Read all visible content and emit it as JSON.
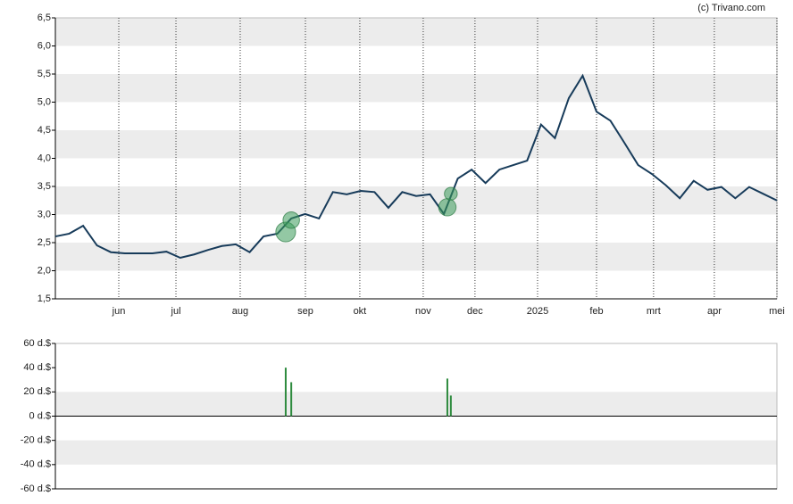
{
  "chart_data": [
    {
      "type": "line",
      "credit": "(c) Trivano.com",
      "values": [
        2.61,
        2.66,
        2.8,
        2.45,
        2.33,
        2.31,
        2.31,
        2.31,
        2.34,
        2.23,
        2.29,
        2.37,
        2.44,
        2.47,
        2.33,
        2.61,
        2.66,
        2.93,
        3.01,
        2.93,
        3.4,
        3.36,
        3.42,
        3.4,
        3.12,
        3.4,
        3.33,
        3.36,
        3.01,
        3.64,
        3.8,
        3.56,
        3.8,
        3.88,
        3.96,
        4.6,
        4.36,
        5.07,
        5.47,
        4.83,
        4.67,
        4.28,
        3.88,
        3.72,
        3.52,
        3.29,
        3.6,
        3.44,
        3.49,
        3.29,
        3.49,
        3.37,
        3.25
      ],
      "color": "#173b5a",
      "markers": {
        "values": [
          2.69,
          2.9,
          3.13,
          3.37
        ],
        "color": "#3a9a5a"
      },
      "xlim": [
        0,
        52
      ],
      "xticks": [
        {
          "value": 4.57,
          "label": "jun"
        },
        {
          "value": 8.69,
          "label": "jul"
        },
        {
          "value": 13.32,
          "label": "aug"
        },
        {
          "value": 18.02,
          "label": "sep"
        },
        {
          "value": 21.94,
          "label": "okt"
        },
        {
          "value": 26.51,
          "label": "nov"
        },
        {
          "value": 30.24,
          "label": "dec"
        },
        {
          "value": 34.75,
          "label": "2025"
        },
        {
          "value": 39.0,
          "label": "feb"
        },
        {
          "value": 43.11,
          "label": "mrt"
        },
        {
          "value": 47.49,
          "label": "apr"
        },
        {
          "value": 52,
          "label": "mei"
        }
      ],
      "ylim": [
        1.5,
        6.5
      ],
      "yticks": [
        {
          "value": 1.5,
          "label": "1,5"
        },
        {
          "value": 2.0,
          "label": "2,0"
        },
        {
          "value": 2.5,
          "label": "2,5"
        },
        {
          "value": 3.0,
          "label": "3,0"
        },
        {
          "value": 3.5,
          "label": "3,5"
        },
        {
          "value": 4.0,
          "label": "4,0"
        },
        {
          "value": 4.5,
          "label": "4,5"
        },
        {
          "value": 5.0,
          "label": "5,0"
        },
        {
          "value": 5.5,
          "label": "5,5"
        },
        {
          "value": 6.0,
          "label": "6,0"
        },
        {
          "value": 6.5,
          "label": "6,5"
        }
      ]
    },
    {
      "type": "bar",
      "x": [
        16.6,
        17.0,
        28.25,
        28.5
      ],
      "values": [
        40,
        28,
        31,
        17
      ],
      "color": "#2e8b3e",
      "xlim": [
        0,
        52
      ],
      "ylim": [
        -60,
        60
      ],
      "yticks": [
        {
          "value": -60,
          "label": "-60 d.$"
        },
        {
          "value": -40,
          "label": "-40 d.$"
        },
        {
          "value": -20,
          "label": "-20 d.$"
        },
        {
          "value": 0,
          "label": "0 d.$"
        },
        {
          "value": 20,
          "label": "20 d.$"
        },
        {
          "value": 40,
          "label": "40 d.$"
        },
        {
          "value": 60,
          "label": "60 d.$"
        }
      ]
    }
  ]
}
